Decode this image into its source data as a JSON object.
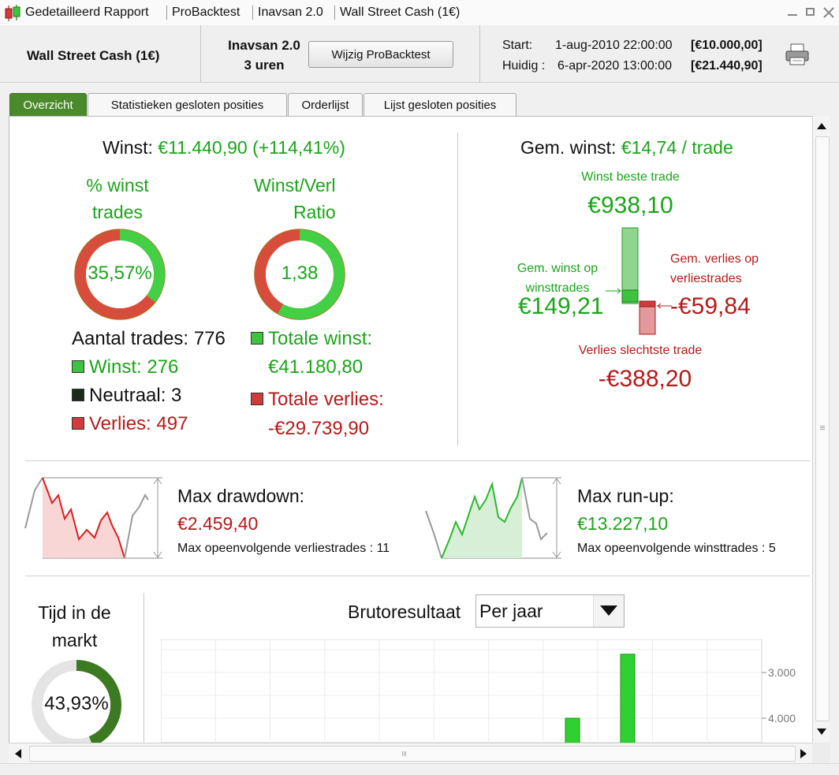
{
  "titlebar": {
    "segments": [
      "Gedetailleerd Rapport",
      "ProBacktest",
      "Inavsan 2.0",
      "Wall Street Cash (1€)"
    ]
  },
  "header": {
    "instrument": "Wall Street Cash (1€)",
    "system_name": "Inavsan 2.0",
    "timeframe": "3 uren",
    "edit_button": "Wijzig ProBacktest",
    "start_label": "Start:",
    "start_value": "1-aug-2010 22:00:00",
    "start_capital": "[€10.000,00]",
    "current_label": "Huidig :",
    "current_value": "6-apr-2020 13:00:00",
    "current_capital": "[€21.440,90]"
  },
  "tabs": [
    "Overzicht",
    "Statistieken gesloten posities",
    "Orderlijst",
    "Lijst gesloten posities"
  ],
  "overview": {
    "winst_label": "Winst:",
    "winst_value": "€11.440,90 (+114,41%)",
    "pct_label_1": "% winst",
    "pct_label_2": "trades",
    "pct_value": "35,57%",
    "pct_fraction": 0.3557,
    "ratio_label_1": "Winst/Verl",
    "ratio_label_2": "Ratio",
    "ratio_value": "1,38",
    "ratio_fraction": 0.58,
    "trades_label": "Aantal trades: 776",
    "winst_trades": "Winst: 276",
    "neutraal_trades": "Neutraal: 3",
    "verlies_trades": "Verlies: 497",
    "totale_winst_label": "Totale winst:",
    "totale_winst_value": "€41.180,80",
    "totale_verlies_label": "Totale verlies:",
    "totale_verlies_value": "-€29.739,90"
  },
  "average": {
    "label": "Gem. winst:",
    "value": "€14,74 / trade",
    "best_label": "Winst beste trade",
    "best_value": "€938,10",
    "avg_win_label_1": "Gem. winst op",
    "avg_win_label_2": "winsttrades",
    "avg_win_value": "€149,21",
    "avg_loss_label_1": "Gem. verlies op",
    "avg_loss_label_2": "verliestrades",
    "avg_loss_value": "-€59,84",
    "worst_label": "Verlies slechtste trade",
    "worst_value": "-€388,20"
  },
  "drawdown": {
    "label": "Max drawdown:",
    "value": "€2.459,40",
    "consecutive": "Max opeenvolgende verliestrades : 11"
  },
  "runup": {
    "label": "Max run-up:",
    "value": "€13.227,10",
    "consecutive": "Max opeenvolgende winsttrades : 5"
  },
  "market_time": {
    "label_1": "Tijd in de",
    "label_2": "markt",
    "value": "43,93%",
    "fraction": 0.4393
  },
  "gross": {
    "label": "Brutoresultaat",
    "period_option": "Per jaar"
  },
  "colors": {
    "green": "#1aa51a",
    "red": "#b51a1a",
    "tab_active": "#4a8a2a"
  },
  "chart_data": {
    "type": "bar",
    "title": "Brutoresultaat",
    "ytick_labels": [
      "3.000",
      "4.000"
    ],
    "visible_bar_values": [
      3000,
      4400
    ],
    "ylim": [
      2500,
      4800
    ]
  }
}
